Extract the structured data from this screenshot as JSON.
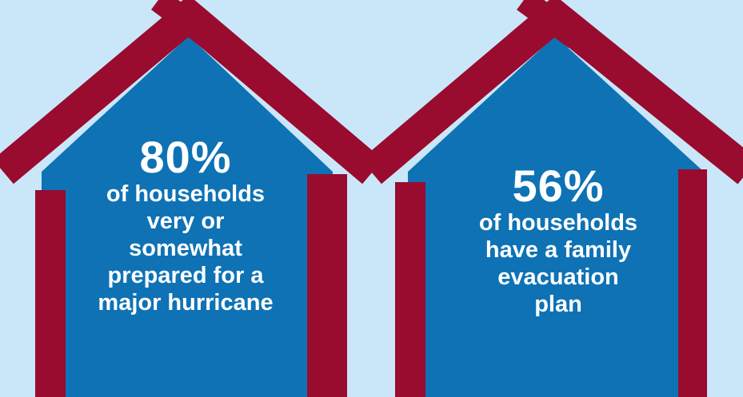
{
  "colors": {
    "background": "#c9e7f8",
    "house_body": "#0e72b5",
    "roof_and_walls": "#990b2f",
    "text": "#ffffff"
  },
  "houses": [
    {
      "icon": "house-icon",
      "value": "80%",
      "lines": [
        "of households",
        "very or",
        "somewhat",
        "prepared for a",
        "major hurricane"
      ]
    },
    {
      "icon": "house-icon",
      "value": "56%",
      "lines": [
        "of households",
        "have a family",
        "evacuation",
        "plan"
      ]
    }
  ]
}
